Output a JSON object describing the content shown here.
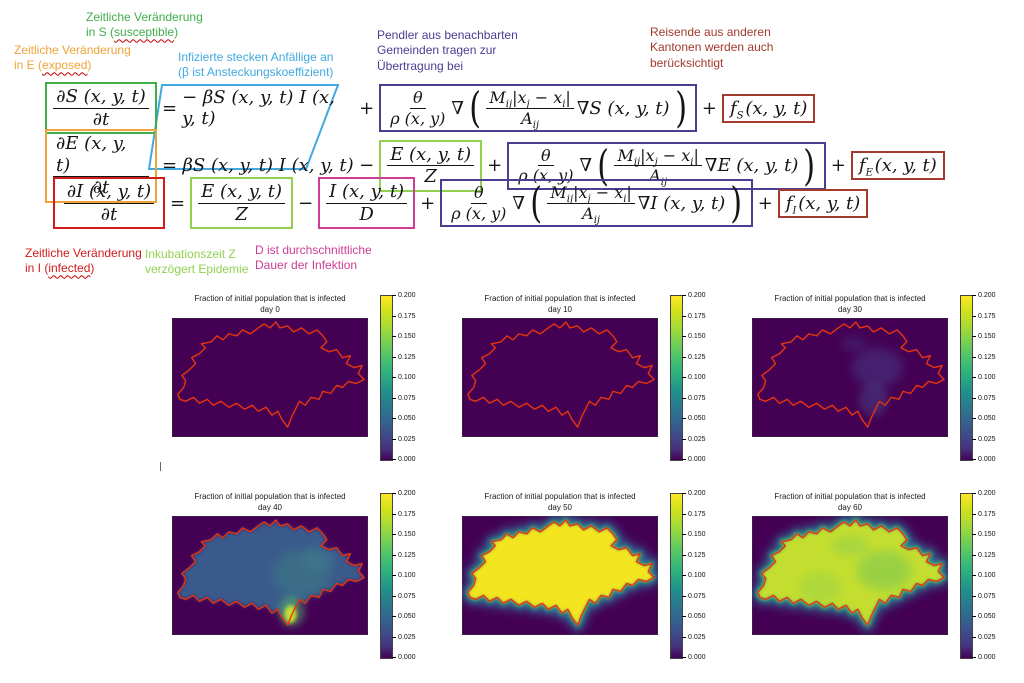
{
  "colors": {
    "green": "#3fae49",
    "orange": "#eda338",
    "red": "#d11b1b",
    "blue": "#41a8e0",
    "light_green": "#92d050",
    "magenta": "#cc3d96",
    "purple": "#4a3e93",
    "dark_red": "#a33a2e"
  },
  "annotations": {
    "s": {
      "line1": "Zeitliche Veränderung",
      "line2_pre": "in S (",
      "underline": "susceptible",
      "line2_post": ")"
    },
    "e": {
      "line1": "Zeitliche Veränderung",
      "line2_pre": "in E (",
      "underline": "exposed",
      "line2_post": ")"
    },
    "beta": {
      "line1": "Infizierte stecken Anfällige an",
      "line2": "(β ist Ansteckungskoeffizient)"
    },
    "pendler": {
      "line1": "Pendler aus benachbarten",
      "line2": "Gemeinden tragen zur",
      "line3": "Übertragung bei"
    },
    "reisende": {
      "line1": "Reisende aus anderen",
      "line2": "Kantonen werden auch",
      "line3": "berücksichtigt"
    },
    "i": {
      "line1": "Zeitliche Veränderung",
      "line2_pre": "in I (",
      "underline": "infected",
      "line2_post": ")"
    },
    "inkubation": {
      "line1": "Inkubationszeit Z",
      "line2": "verzögert Epidemie"
    },
    "dauer": {
      "line1": "D ist durchschnittliche",
      "line2": "Dauer der Infektion"
    }
  },
  "equations": {
    "ops": {
      "equals": "=",
      "plus": "+",
      "minus": "−",
      "nabla": "∇",
      "lparen": "(",
      "rparen": ")"
    },
    "lhs": {
      "s": {
        "num": "∂S (x, y, t)",
        "den": "∂t"
      },
      "e": {
        "num": "∂E (x, y, t)",
        "den": "∂t"
      },
      "i": {
        "num": "∂I (x, y, t)",
        "den": "∂t"
      }
    },
    "mass_action": {
      "s": "− βS (x, y, t) I (x, y, t)",
      "e": "βS (x, y, t) I (x, y, t)"
    },
    "theta_frac": {
      "num": "θ",
      "den": "ρ (x, y)"
    },
    "mobility": {
      "m_base": "M",
      "m_sub": "ij",
      "x1": "|x",
      "x1_sub": "j",
      "x2": " − x",
      "x2_sub": "i",
      "close": "|",
      "den_base": "A",
      "den_sub": "ij"
    },
    "nabla_terms": {
      "s": "∇S (x, y, t)",
      "e": "∇E (x, y, t)",
      "i": "∇I (x, y, t)"
    },
    "ez_frac": {
      "num": "E (x, y, t)",
      "den": "Z"
    },
    "id_frac": {
      "num": "I (x, y, t)",
      "den": "D"
    },
    "f_terms": {
      "s": {
        "base": "f",
        "sub": "S",
        "args": "(x, y, t)"
      },
      "e": {
        "base": "f",
        "sub": "E",
        "args": "(x, y, t)"
      },
      "i": {
        "base": "f",
        "sub": "I",
        "args": "(x, y, t)"
      }
    }
  },
  "maps": {
    "shared_title": "Fraction of initial population that is infected",
    "panels": [
      {
        "day": "day 0"
      },
      {
        "day": "day 10"
      },
      {
        "day": "day 30"
      },
      {
        "day": "day 40"
      },
      {
        "day": "day 50"
      },
      {
        "day": "day 60"
      }
    ],
    "colorbar_ticks": [
      "0.200",
      "0.175",
      "0.150",
      "0.125",
      "0.100",
      "0.075",
      "0.050",
      "0.025",
      "0.000"
    ],
    "colors": {
      "background": "#440154",
      "outline": "#e8350e"
    }
  },
  "chart_data": [
    {
      "type": "heatmap",
      "title": "Fraction of initial population that is infected",
      "subtitle": "day 0",
      "colormap": "viridis",
      "colorbar_range": [
        0.0,
        0.2
      ],
      "colorbar_ticks": [
        0.0,
        0.025,
        0.05,
        0.075,
        0.1,
        0.125,
        0.15,
        0.175,
        0.2
      ],
      "region": "Switzerland (red border)",
      "approx_fraction_interior": 0.0,
      "notes": "uniform, no infection visible"
    },
    {
      "type": "heatmap",
      "title": "Fraction of initial population that is infected",
      "subtitle": "day 10",
      "colormap": "viridis",
      "colorbar_range": [
        0.0,
        0.2
      ],
      "colorbar_ticks": [
        0.0,
        0.025,
        0.05,
        0.075,
        0.1,
        0.125,
        0.15,
        0.175,
        0.2
      ],
      "region": "Switzerland (red border)",
      "approx_fraction_interior": 0.0,
      "notes": "uniform, no infection visible"
    },
    {
      "type": "heatmap",
      "title": "Fraction of initial population that is infected",
      "subtitle": "day 30",
      "colormap": "viridis",
      "colorbar_range": [
        0.0,
        0.2
      ],
      "colorbar_ticks": [
        0.0,
        0.025,
        0.05,
        0.075,
        0.1,
        0.125,
        0.15,
        0.175,
        0.2
      ],
      "region": "Switzerland (red border)",
      "approx_fraction_interior": 0.01,
      "notes": "faint lighter patches in eastern/central Switzerland"
    },
    {
      "type": "heatmap",
      "title": "Fraction of initial population that is infected",
      "subtitle": "day 40",
      "colormap": "viridis",
      "colorbar_range": [
        0.0,
        0.2
      ],
      "colorbar_ticks": [
        0.0,
        0.025,
        0.05,
        0.075,
        0.1,
        0.125,
        0.15,
        0.175,
        0.2
      ],
      "region": "Switzerland (red border)",
      "approx_fraction_interior": 0.05,
      "notes": "blue interior ~0.05, greener center-east ~0.09, bright hotspot ~0.15 in south (Ticino)"
    },
    {
      "type": "heatmap",
      "title": "Fraction of initial population that is infected",
      "subtitle": "day 50",
      "colormap": "viridis",
      "colorbar_range": [
        0.0,
        0.2
      ],
      "colorbar_ticks": [
        0.0,
        0.025,
        0.05,
        0.075,
        0.1,
        0.125,
        0.15,
        0.175,
        0.2
      ],
      "region": "Switzerland (red border)",
      "approx_fraction_interior": 0.2,
      "notes": "interior saturated at ≥0.200 (yellow), green-blue fringe at borders"
    },
    {
      "type": "heatmap",
      "title": "Fraction of initial population that is infected",
      "subtitle": "day 60",
      "colormap": "viridis",
      "colorbar_range": [
        0.0,
        0.2
      ],
      "colorbar_ticks": [
        0.0,
        0.025,
        0.05,
        0.075,
        0.1,
        0.125,
        0.15,
        0.175,
        0.2
      ],
      "region": "Switzerland (red border)",
      "approx_fraction_interior": 0.16,
      "notes": "yellow-green interior ~0.15-0.175 with greener patches, fading fringe"
    }
  ],
  "stray_mark": "i"
}
